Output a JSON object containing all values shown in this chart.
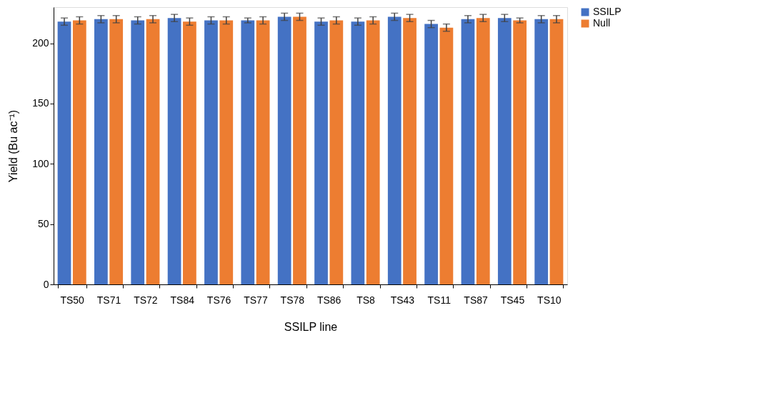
{
  "chart_data": {
    "type": "bar",
    "xlabel": "SSILP line",
    "ylabel": "Yield (Bu ac⁻¹)",
    "categories": [
      "TS50",
      "TS71",
      "TS72",
      "TS84",
      "TS76",
      "TS77",
      "TS78",
      "TS86",
      "TS8",
      "TS43",
      "TS11",
      "TS87",
      "TS45",
      "TS10"
    ],
    "series": [
      {
        "name": "SSILP",
        "color": "#4472c4",
        "values": [
          218,
          220,
          219,
          221,
          219,
          219,
          222,
          218,
          218,
          222,
          216,
          220,
          221,
          220
        ],
        "errors": [
          3,
          3,
          3,
          3,
          3,
          2,
          3,
          3,
          3,
          3,
          3,
          3,
          3,
          3
        ]
      },
      {
        "name": "Null",
        "color": "#ed7d31",
        "values": [
          219,
          220,
          220,
          218,
          219,
          219,
          222,
          219,
          219,
          221,
          213,
          221,
          219,
          220
        ],
        "errors": [
          3,
          3,
          3,
          3,
          3,
          3,
          3,
          3,
          3,
          3,
          3,
          3,
          2,
          3
        ]
      }
    ],
    "ylim": [
      0,
      230
    ],
    "yticks": [
      0,
      50,
      100,
      150,
      200
    ],
    "grid": false,
    "legend": "right"
  }
}
